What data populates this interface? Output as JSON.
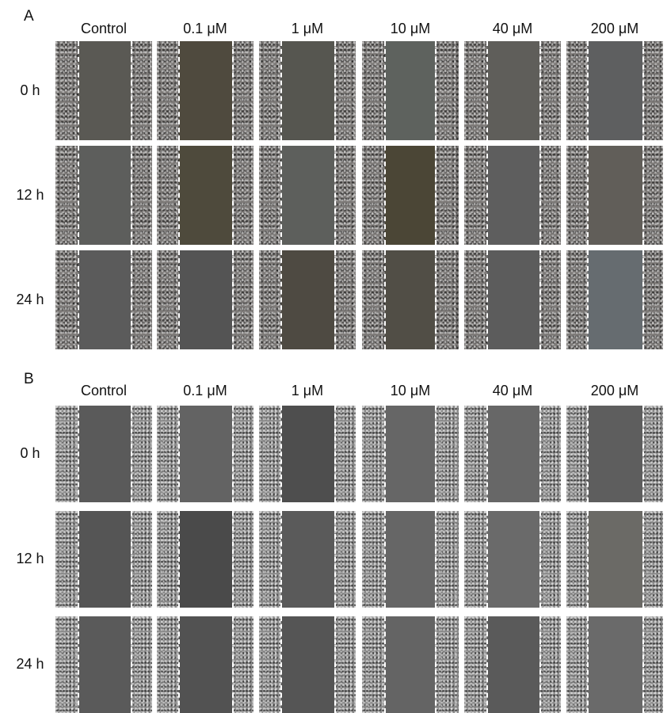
{
  "panels": [
    {
      "label": "A",
      "columns": [
        "Control",
        "0.1 μM",
        "1 μM",
        "10 μM",
        "40 μM",
        "200 μM"
      ],
      "rows": [
        "0 h",
        "12 h",
        "24 h"
      ],
      "gap_colors": [
        [
          "#5a5954",
          "#4f4a3e",
          "#565650",
          "#5e625e",
          "#5f5e5a",
          "#5e5f60"
        ],
        [
          "#5d5e5c",
          "#4e4a3c",
          "#5d5f5c",
          "#4b4636",
          "#5e5e5e",
          "#615e59"
        ],
        [
          "#5b5b5b",
          "#545454",
          "#4e4a42",
          "#514e46",
          "#5c5c5c",
          "#666c70"
        ]
      ]
    },
    {
      "label": "B",
      "columns": [
        "Control",
        "0.1 μM",
        "1 μM",
        "10 μM",
        "40 μM",
        "200 μM"
      ],
      "rows": [
        "0 h",
        "12 h",
        "24 h"
      ],
      "gap_colors": [
        [
          "#5a5a5a",
          "#636363",
          "#4e4e4e",
          "#666666",
          "#676767",
          "#5e5e5e"
        ],
        [
          "#555555",
          "#4a4a4a",
          "#5a5a5a",
          "#666666",
          "#6a6a6a",
          "#6b6a66"
        ],
        [
          "#5a5a5a",
          "#525252",
          "#555555",
          "#646464",
          "#5a5a5a",
          "#6a6a6a"
        ]
      ]
    }
  ]
}
